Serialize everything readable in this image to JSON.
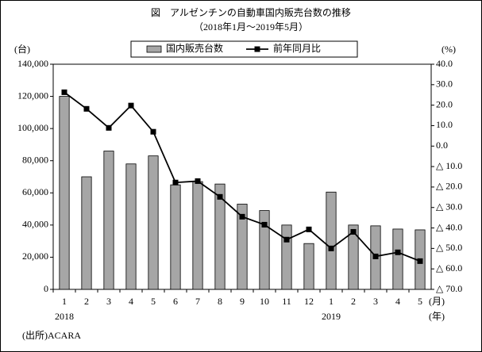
{
  "chart_data": {
    "type": "bar-line",
    "title": "図　アルゼンチンの自動車国内販売台数の推移",
    "subtitle": "（2018年1月～2019年5月）",
    "categories": [
      "1",
      "2",
      "3",
      "4",
      "5",
      "6",
      "7",
      "8",
      "9",
      "10",
      "11",
      "12",
      "1",
      "2",
      "3",
      "4",
      "5"
    ],
    "category_years": [
      "2018",
      null,
      null,
      null,
      null,
      null,
      null,
      null,
      null,
      null,
      null,
      null,
      "2019",
      null,
      null,
      null,
      null
    ],
    "x_unit_label": "(月)",
    "x_year_label": "(年)",
    "y_label": "(台)",
    "y2_label": "(%)",
    "series": [
      {
        "name": "国内販売台数",
        "type": "bar",
        "color": "#a6a6a6",
        "values": [
          120000,
          70000,
          86000,
          78000,
          83000,
          65000,
          67000,
          65500,
          53000,
          49000,
          40000,
          28500,
          60500,
          40000,
          39500,
          37500,
          37000
        ]
      },
      {
        "name": "前年同月比",
        "type": "line",
        "axis": "y2",
        "color": "#000000",
        "values": [
          26.3,
          18.2,
          8.9,
          19.8,
          7.0,
          -17.8,
          -17.1,
          -24.8,
          -34.5,
          -38.4,
          -45.7,
          -40.7,
          -50.0,
          -41.9,
          -53.9,
          -51.9,
          -56.2
        ]
      }
    ],
    "ylim": [
      0,
      140000
    ],
    "yticks": [
      0,
      {
        "value": 20000,
        "label": "20,000"
      },
      {
        "value": 40000,
        "label": "40,000"
      },
      {
        "value": 60000,
        "label": "60,000"
      },
      {
        "value": 80000,
        "label": "80,000"
      },
      {
        "value": 100000,
        "label": "100,000"
      },
      {
        "value": 120000,
        "label": "120,000"
      },
      {
        "value": 140000,
        "label": "140,000"
      }
    ],
    "y2lim": [
      -70,
      40
    ],
    "y2ticks": [
      {
        "value": 40,
        "label": "40.0"
      },
      {
        "value": 30,
        "label": "30.0"
      },
      {
        "value": 20,
        "label": "20.0"
      },
      {
        "value": 10,
        "label": "10.0"
      },
      {
        "value": 0,
        "label": "0.0"
      },
      {
        "value": -10,
        "label": "△ 10.0"
      },
      {
        "value": -20,
        "label": "△ 20.0"
      },
      {
        "value": -30,
        "label": "△ 30.0"
      },
      {
        "value": -40,
        "label": "△ 40.0"
      },
      {
        "value": -50,
        "label": "△ 50.0"
      },
      {
        "value": -60,
        "label": "△ 60.0"
      },
      {
        "value": -70,
        "label": "△ 70.0"
      }
    ],
    "source": "(出所)ACARA"
  }
}
